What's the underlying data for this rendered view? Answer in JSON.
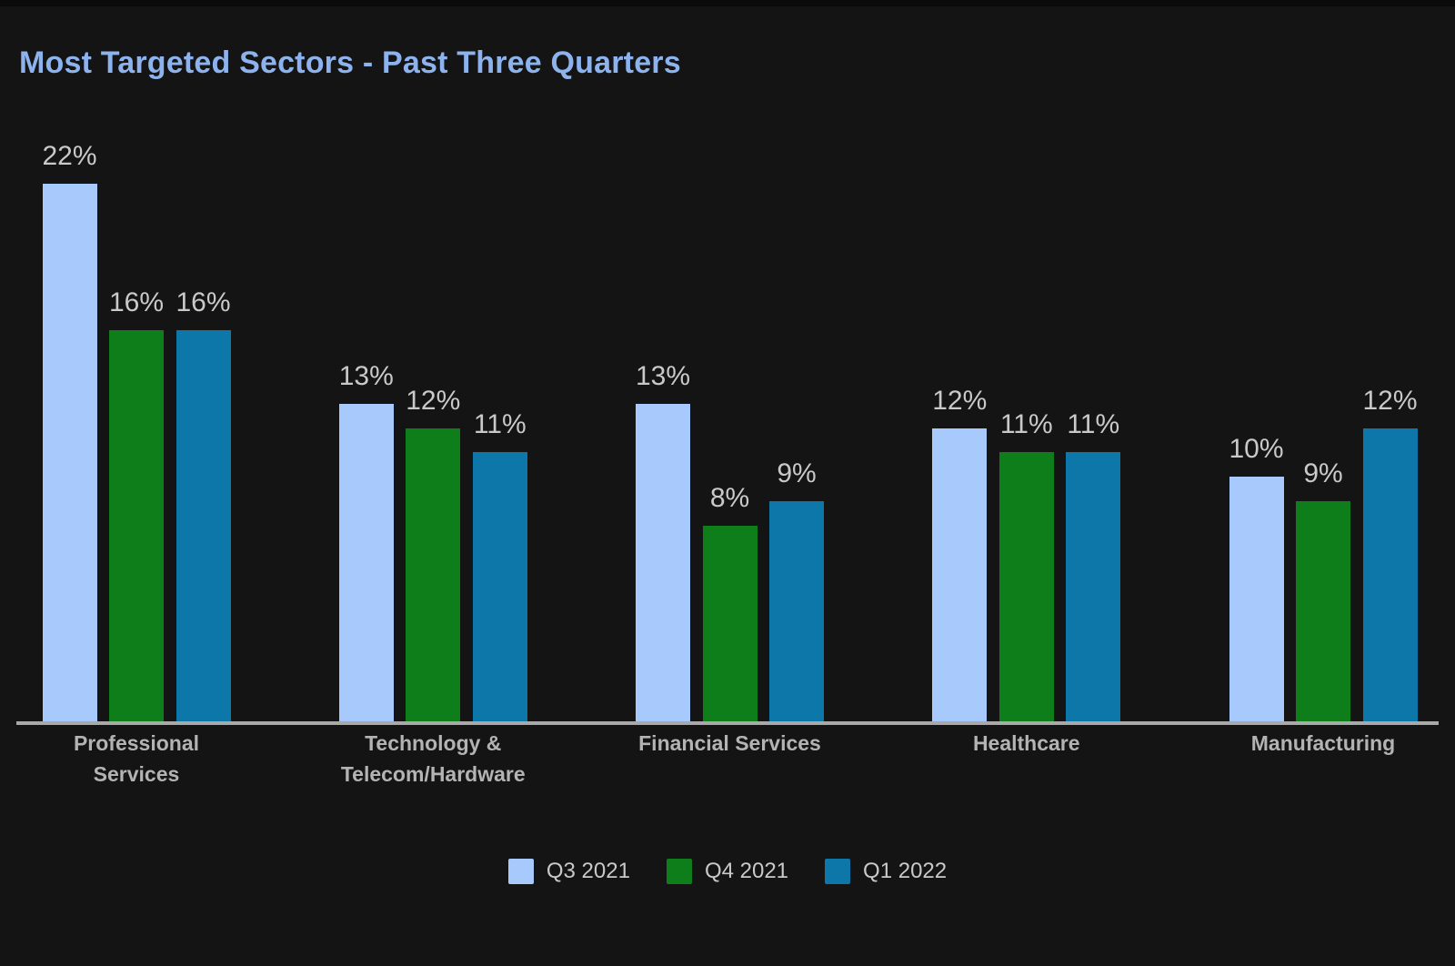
{
  "title": "Most Targeted Sectors - Past Three Quarters",
  "colors": {
    "background": "#141414",
    "title": "#8db3ef",
    "data_label": "#c9c9c9",
    "category_label": "#b3b3b3",
    "axis_line": "#a9a9a9"
  },
  "chart_data": {
    "type": "bar",
    "title": "Most Targeted Sectors - Past Three Quarters",
    "categories": [
      "Professional\nServices",
      "Technology &\nTelecom/Hardware",
      "Financial Services",
      "Healthcare",
      "Manufacturing"
    ],
    "series": [
      {
        "name": "Q3 2021",
        "color": "#a7c9fb",
        "values": [
          22,
          13,
          13,
          12,
          10
        ]
      },
      {
        "name": "Q4 2021",
        "color": "#0d7e19",
        "values": [
          16,
          12,
          8,
          11,
          9
        ]
      },
      {
        "name": "Q1 2022",
        "color": "#0e77a9",
        "values": [
          16,
          11,
          9,
          11,
          12
        ]
      }
    ],
    "value_suffix": "%",
    "xlabel": "",
    "ylabel": "",
    "ylim": [
      0,
      23
    ],
    "grid": false,
    "y_axis_visible": false,
    "data_labels": true,
    "legend_position": "bottom"
  }
}
